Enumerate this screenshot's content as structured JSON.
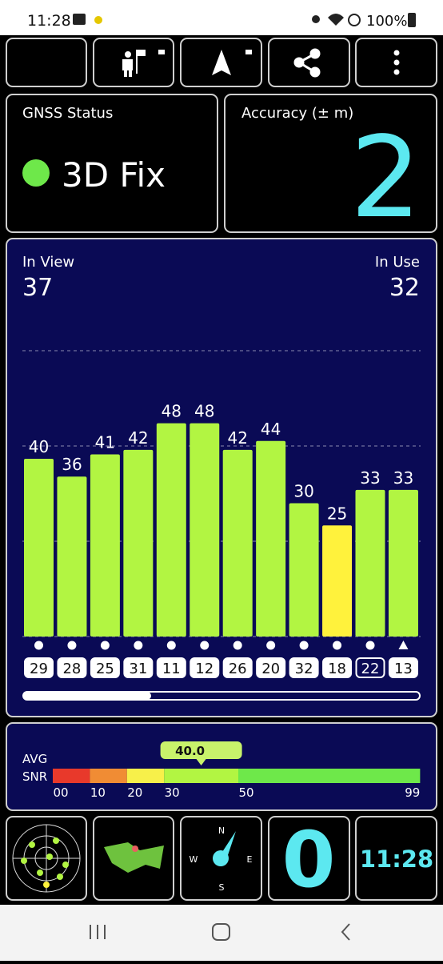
{
  "status_bar": {
    "time": "11:28",
    "battery": "100%"
  },
  "gnss_status": {
    "label": "GNSS Status",
    "value": "3D Fix"
  },
  "accuracy": {
    "label": "Accuracy (± m)",
    "value": "2"
  },
  "satellites": {
    "in_view_label": "In View",
    "in_view": 37,
    "in_use_label": "In Use",
    "in_use": 32
  },
  "signal_chart": {
    "type": "bar",
    "values": [
      40,
      36,
      41,
      42,
      48,
      48,
      42,
      44,
      30,
      25,
      33,
      33
    ],
    "prns": [
      "29",
      "28",
      "25",
      "31",
      "11",
      "12",
      "26",
      "20",
      "32",
      "18",
      "22",
      "13"
    ],
    "colors": [
      "#b2f542",
      "#b2f542",
      "#b2f542",
      "#b2f542",
      "#b2f542",
      "#b2f542",
      "#b2f542",
      "#b2f542",
      "#b2f542",
      "#fff23c",
      "#b2f542",
      "#b2f542"
    ]
  },
  "avg_snr": {
    "label_top": "AVG",
    "label_bottom": "SNR",
    "value": 40,
    "value_label": "40.0",
    "ticks": [
      {
        "value": 0,
        "label": "00"
      },
      10,
      20,
      30,
      50,
      99
    ],
    "segment_colors": [
      "#e8392b",
      "#f08c34",
      "#f7f04a",
      "#b2f542",
      "#6ee84a"
    ]
  },
  "tiles": {
    "compass": {
      "n": "N",
      "e": "E",
      "s": "S",
      "w": "W"
    },
    "speed": "0",
    "clock": "11:28"
  }
}
